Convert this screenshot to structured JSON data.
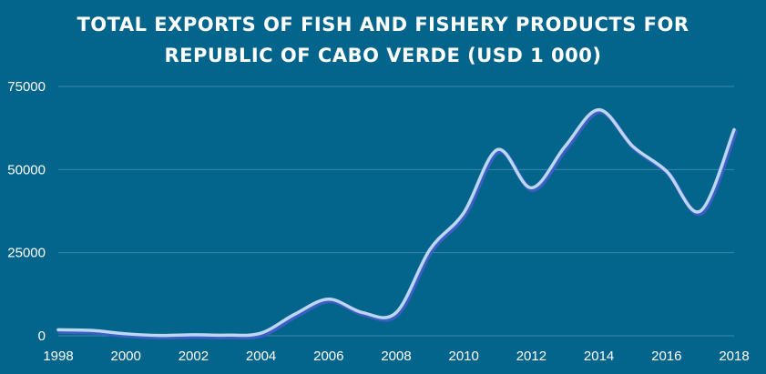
{
  "colors": {
    "background": "#03648c",
    "gridline": "#3d88aa",
    "line": "#bcd7f1",
    "line_shadow": "#3d5ec2",
    "text": "#ffffff"
  },
  "chart_data": {
    "type": "line",
    "title_lines": [
      "TOTAL EXPORTS OF FISH AND FISHERY PRODUCTS FOR",
      "REPUBLIC OF CABO VERDE (USD 1 000)"
    ],
    "xlabel": "",
    "ylabel": "",
    "xlim": [
      1998,
      2018
    ],
    "ylim": [
      0,
      75000
    ],
    "x_ticks": [
      "1998",
      "2000",
      "2002",
      "2004",
      "2006",
      "2008",
      "2010",
      "2012",
      "2014",
      "2016",
      "2018"
    ],
    "y_ticks": [
      "0",
      "25000",
      "50000",
      "75000"
    ],
    "grid": true,
    "legend": "none",
    "x": [
      1998,
      1999,
      2000,
      2001,
      2002,
      2003,
      2004,
      2005,
      2006,
      2007,
      2008,
      2009,
      2010,
      2011,
      2012,
      2013,
      2014,
      2015,
      2016,
      2017,
      2018
    ],
    "series": [
      {
        "values": [
          1800,
          1600,
          600,
          100,
          300,
          200,
          800,
          6500,
          11000,
          7000,
          7000,
          26000,
          37000,
          56000,
          44500,
          57000,
          68000,
          57000,
          49500,
          37500,
          62000
        ]
      }
    ]
  }
}
